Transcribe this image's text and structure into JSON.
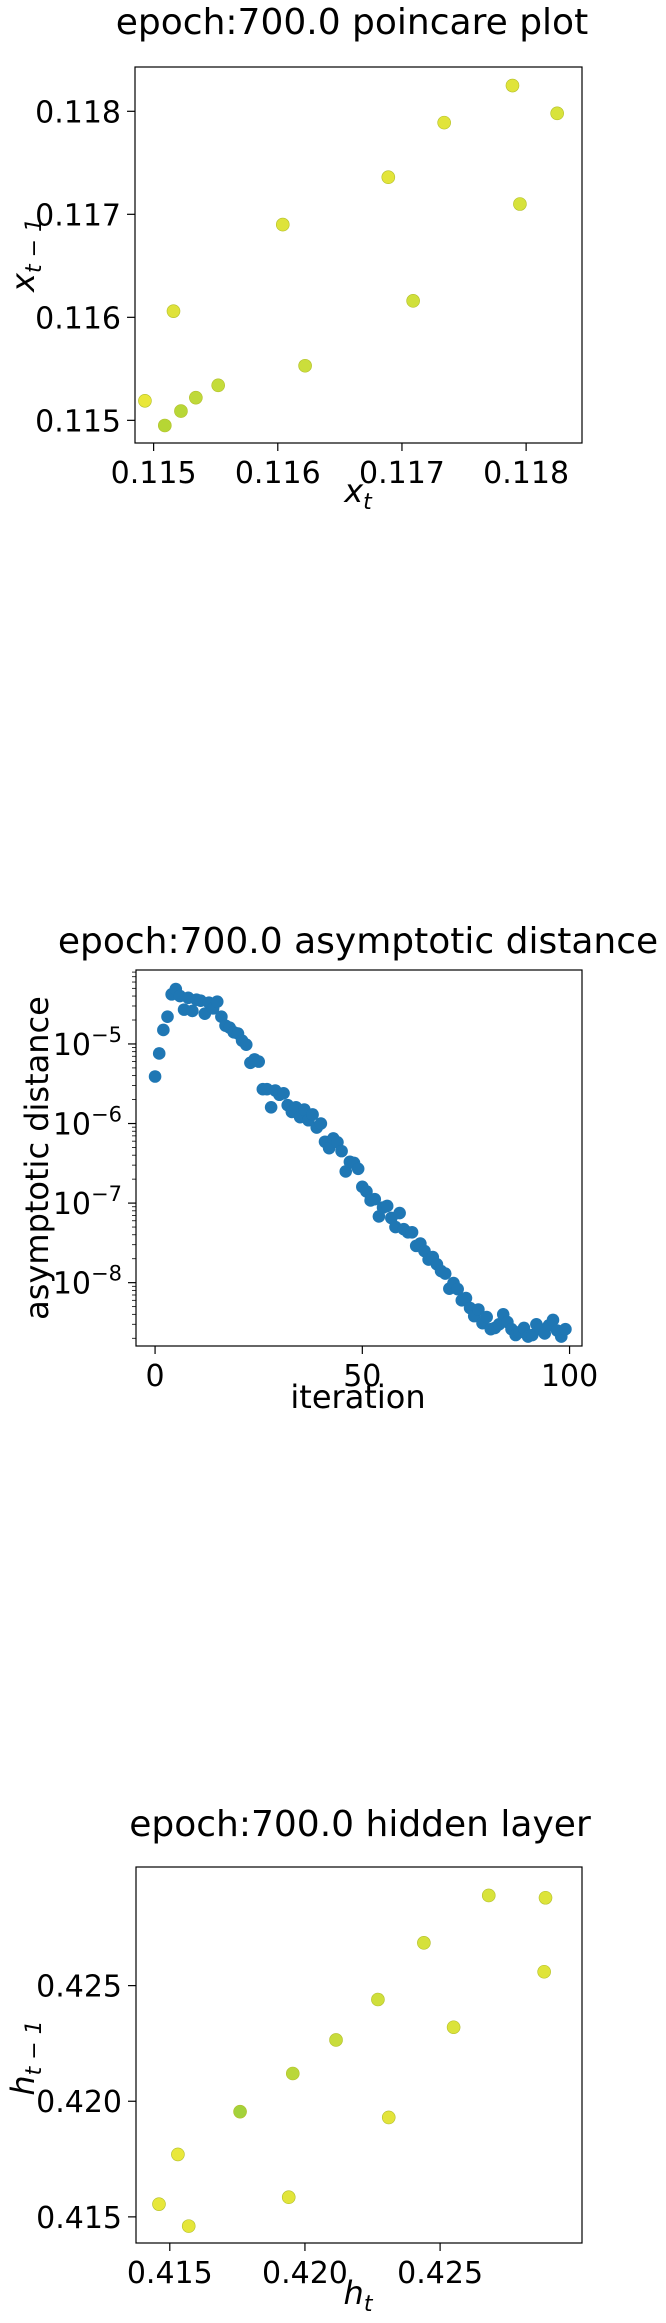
{
  "chart_data": [
    {
      "type": "scatter",
      "title": "epoch:700.0 poincare plot",
      "xlabel": "x_t",
      "ylabel": "x_t-1",
      "xlim": [
        0.11485,
        0.11845
      ],
      "ylim": [
        0.11478,
        0.11843
      ],
      "xticks": [
        "0.115",
        "0.116",
        "0.117",
        "0.118"
      ],
      "xtick_values": [
        0.115,
        0.116,
        0.117,
        0.118
      ],
      "yticks": [
        "0.115",
        "0.116",
        "0.117",
        "0.118"
      ],
      "ytick_values": [
        0.115,
        0.116,
        0.117,
        0.118
      ],
      "grid": false,
      "points": [
        {
          "x": 0.11493,
          "y": 0.11519,
          "color": "#e9e739"
        },
        {
          "x": 0.11509,
          "y": 0.11495,
          "color": "#b6d634"
        },
        {
          "x": 0.11516,
          "y": 0.11606,
          "color": "#dfe23a"
        },
        {
          "x": 0.11522,
          "y": 0.11509,
          "color": "#b8d737"
        },
        {
          "x": 0.11534,
          "y": 0.11522,
          "color": "#bfd93a"
        },
        {
          "x": 0.11552,
          "y": 0.11534,
          "color": "#c4dc3b"
        },
        {
          "x": 0.11604,
          "y": 0.1169,
          "color": "#dee33a"
        },
        {
          "x": 0.11622,
          "y": 0.11553,
          "color": "#cbde3b"
        },
        {
          "x": 0.11689,
          "y": 0.11736,
          "color": "#e3e53a"
        },
        {
          "x": 0.11709,
          "y": 0.11616,
          "color": "#d0e03b"
        },
        {
          "x": 0.11734,
          "y": 0.11789,
          "color": "#e1e43a"
        },
        {
          "x": 0.11789,
          "y": 0.11825,
          "color": "#e0e43a"
        },
        {
          "x": 0.11795,
          "y": 0.1171,
          "color": "#d6e23b"
        },
        {
          "x": 0.11825,
          "y": 0.11798,
          "color": "#d8e33b"
        }
      ]
    },
    {
      "type": "scatter",
      "title": "epoch:700.0 asymptotic distance",
      "xlabel": "iteration",
      "ylabel": "asymptotic distance",
      "xlim": [
        -4.6,
        103
      ],
      "ylim": [
        1.6e-09,
        8.5e-05
      ],
      "yscale": "log",
      "xticks": [
        "0",
        "50",
        "100"
      ],
      "xtick_values": [
        0,
        50,
        100
      ],
      "yticks": [
        "10^-5",
        "10^-6",
        "10^-7",
        "10^-8"
      ],
      "ytick_values": [
        1e-05,
        1e-06,
        1e-07,
        1e-08
      ],
      "grid": false,
      "color": "#1f77b4",
      "x": [
        0,
        1,
        2,
        3,
        4,
        5,
        6,
        7,
        8,
        9,
        10,
        11,
        12,
        13,
        14,
        15,
        16,
        17,
        18,
        19,
        20,
        21,
        22,
        23,
        24,
        25,
        26,
        27,
        28,
        29,
        30,
        31,
        32,
        33,
        34,
        35,
        36,
        37,
        38,
        39,
        40,
        41,
        42,
        43,
        44,
        45,
        46,
        47,
        48,
        49,
        50,
        51,
        52,
        53,
        54,
        55,
        56,
        57,
        58,
        59,
        60,
        61,
        62,
        63,
        64,
        65,
        66,
        67,
        68,
        69,
        70,
        71,
        72,
        73,
        74,
        75,
        76,
        77,
        78,
        79,
        80,
        81,
        82,
        83,
        84,
        85,
        86,
        87,
        88,
        89,
        90,
        91,
        92,
        93,
        94,
        95,
        96,
        97,
        98,
        99
      ],
      "y": [
        3.9e-06,
        7.6e-06,
        1.5e-05,
        2.2e-05,
        4.2e-05,
        4.9e-05,
        4e-05,
        2.7e-05,
        3.8e-05,
        2.6e-05,
        3.6e-05,
        3.5e-05,
        2.4e-05,
        3.3e-05,
        2.8e-05,
        3.4e-05,
        2.2e-05,
        1.7e-05,
        1.6e-05,
        1.4e-05,
        1.35e-05,
        1.1e-05,
        9.8e-06,
        5.8e-06,
        6.4e-06,
        6e-06,
        2.7e-06,
        2.7e-06,
        1.6e-06,
        2.6e-06,
        2.3e-06,
        2.4e-06,
        1.7e-06,
        1.4e-06,
        1.6e-06,
        1.2e-06,
        1.5e-06,
        1.1e-06,
        1.3e-06,
        8.9e-07,
        1e-06,
        5.9e-07,
        4.9e-07,
        6.5e-07,
        5.8e-07,
        4.5e-07,
        2.5e-07,
        3.3e-07,
        3.2e-07,
        2.7e-07,
        1.6e-07,
        1.4e-07,
        1.08e-07,
        1.12e-07,
        6.8e-08,
        8.8e-08,
        9.2e-08,
        6.5e-08,
        5e-08,
        7.5e-08,
        4.7e-08,
        4.3e-08,
        4.3e-08,
        2.9e-08,
        3.1e-08,
        2.5e-08,
        1.95e-08,
        2.1e-08,
        1.7e-08,
        1.4e-08,
        1.3e-08,
        8.4e-09,
        9.9e-09,
        8.3e-09,
        6e-09,
        6.4e-09,
        4.8e-09,
        3.8e-09,
        4.6e-09,
        3.1e-09,
        3.7e-09,
        2.6e-09,
        2.7e-09,
        3e-09,
        4e-09,
        3.2e-09,
        2.6e-09,
        2.2e-09,
        2.4e-09,
        2.7e-09,
        2.1e-09,
        2.2e-09,
        3e-09,
        2.6e-09,
        2.3e-09,
        2.9e-09,
        3.4e-09,
        2.5e-09,
        2.1e-09,
        2.6e-09
      ]
    },
    {
      "type": "scatter",
      "title": "epoch:700.0 hidden layer",
      "xlabel": "h_t",
      "ylabel": "h_t-1",
      "xlim": [
        0.41375,
        0.43025
      ],
      "ylim": [
        0.41387,
        0.43013
      ],
      "xticks": [
        "0.415",
        "0.420",
        "0.425"
      ],
      "xtick_values": [
        0.415,
        0.42,
        0.425
      ],
      "yticks": [
        "0.415",
        "0.420",
        "0.425"
      ],
      "ytick_values": [
        0.415,
        0.42,
        0.425
      ],
      "grid": false,
      "points": [
        {
          "x": 0.4146,
          "y": 0.41555,
          "color": "#e7e73a"
        },
        {
          "x": 0.4153,
          "y": 0.4177,
          "color": "#e9e83b"
        },
        {
          "x": 0.4157,
          "y": 0.4146,
          "color": "#e5e639"
        },
        {
          "x": 0.4176,
          "y": 0.41955,
          "color": "#a4d23b"
        },
        {
          "x": 0.4194,
          "y": 0.41585,
          "color": "#e2e53a"
        },
        {
          "x": 0.41955,
          "y": 0.4212,
          "color": "#bad739"
        },
        {
          "x": 0.42115,
          "y": 0.42265,
          "color": "#c8dc3b"
        },
        {
          "x": 0.4231,
          "y": 0.4193,
          "color": "#e3e43a"
        },
        {
          "x": 0.4227,
          "y": 0.4244,
          "color": "#cfdf3b"
        },
        {
          "x": 0.4244,
          "y": 0.42685,
          "color": "#d5e13b"
        },
        {
          "x": 0.4255,
          "y": 0.4232,
          "color": "#dbe33a"
        },
        {
          "x": 0.4268,
          "y": 0.4289,
          "color": "#d8e33b"
        },
        {
          "x": 0.4289,
          "y": 0.4288,
          "color": "#dde43a"
        },
        {
          "x": 0.42885,
          "y": 0.4256,
          "color": "#dfe43a"
        }
      ]
    }
  ]
}
